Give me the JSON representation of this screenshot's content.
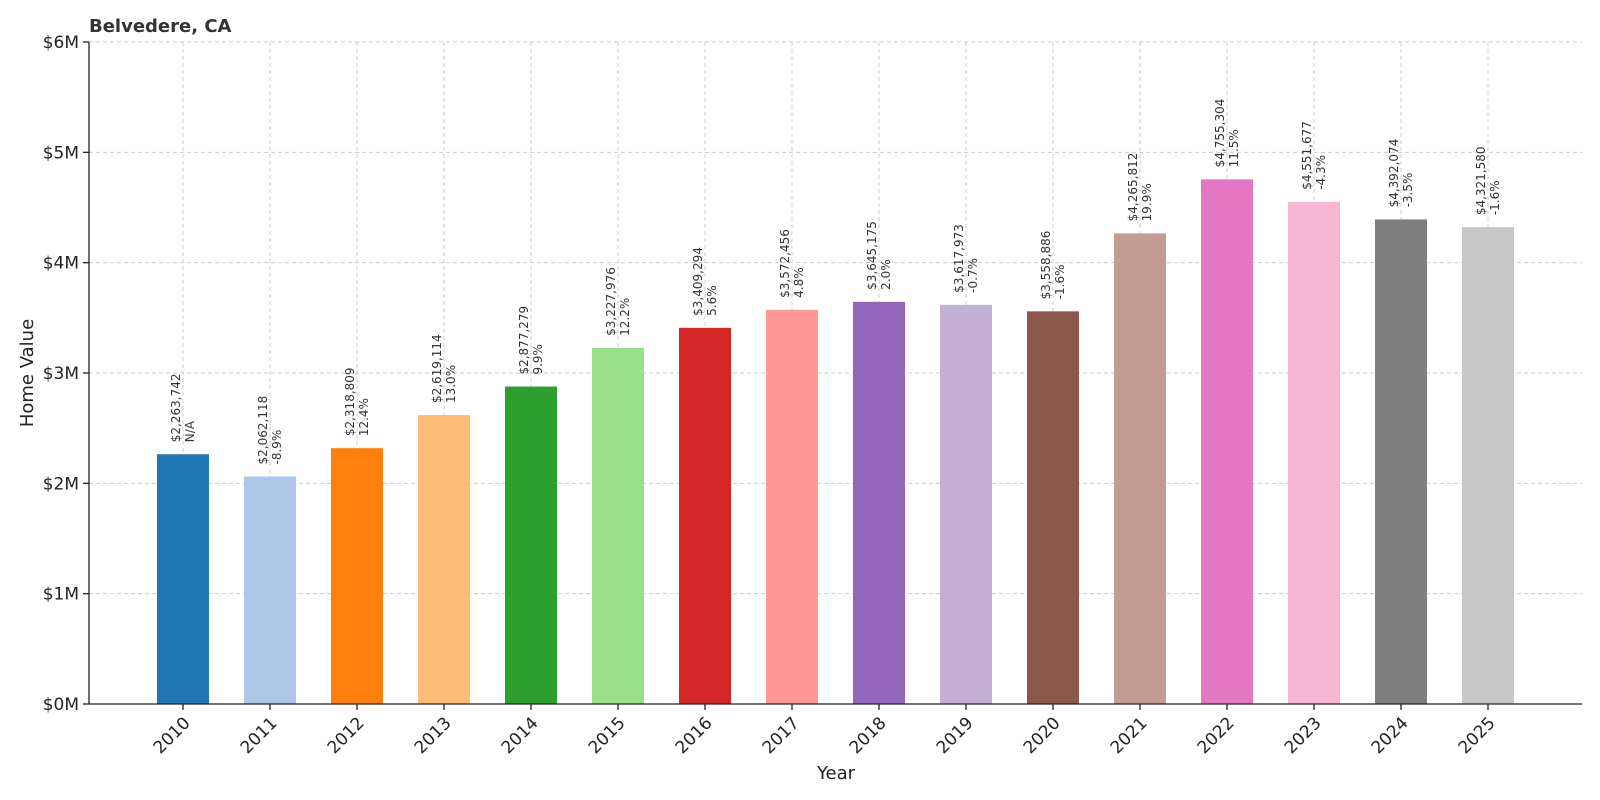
{
  "chart_data": {
    "type": "bar",
    "title": "Belvedere, CA",
    "xlabel": "Year",
    "ylabel": "Home Value",
    "ylim": [
      0,
      6000000
    ],
    "yticks": [
      0,
      1000000,
      2000000,
      3000000,
      4000000,
      5000000,
      6000000
    ],
    "ytick_labels": [
      "$0M",
      "$1M",
      "$2M",
      "$3M",
      "$4M",
      "$5M",
      "$6M"
    ],
    "grid": true,
    "categories": [
      "2010",
      "2011",
      "2012",
      "2013",
      "2014",
      "2015",
      "2016",
      "2017",
      "2018",
      "2019",
      "2020",
      "2021",
      "2022",
      "2023",
      "2024",
      "2025"
    ],
    "values": [
      2263742,
      2062118,
      2318809,
      2619114,
      2877279,
      3227976,
      3409294,
      3572456,
      3645175,
      3617973,
      3558886,
      4265812,
      4755304,
      4551677,
      4392074,
      4321580
    ],
    "value_labels": [
      "$2,263,742",
      "$2,062,118",
      "$2,318,809",
      "$2,619,114",
      "$2,877,279",
      "$3,227,976",
      "$3,409,294",
      "$3,572,456",
      "$3,645,175",
      "$3,617,973",
      "$3,558,886",
      "$4,265,812",
      "$4,755,304",
      "$4,551,677",
      "$4,392,074",
      "$4,321,580"
    ],
    "change_labels": [
      "N/A",
      "-8.9%",
      "12.4%",
      "13.0%",
      "9.9%",
      "12.2%",
      "5.6%",
      "4.8%",
      "2.0%",
      "-0.7%",
      "-1.6%",
      "19.9%",
      "11.5%",
      "-4.3%",
      "-3.5%",
      "-1.6%"
    ],
    "colors": [
      "#1f77b4",
      "#aec7e8",
      "#ff7f0e",
      "#ffbb78",
      "#2ca02c",
      "#98df8a",
      "#d62728",
      "#ff9896",
      "#9467bd",
      "#c5b0d5",
      "#8c564b",
      "#c49c94",
      "#e377c2",
      "#f7b6d2",
      "#7f7f7f",
      "#c7c7c7"
    ]
  }
}
